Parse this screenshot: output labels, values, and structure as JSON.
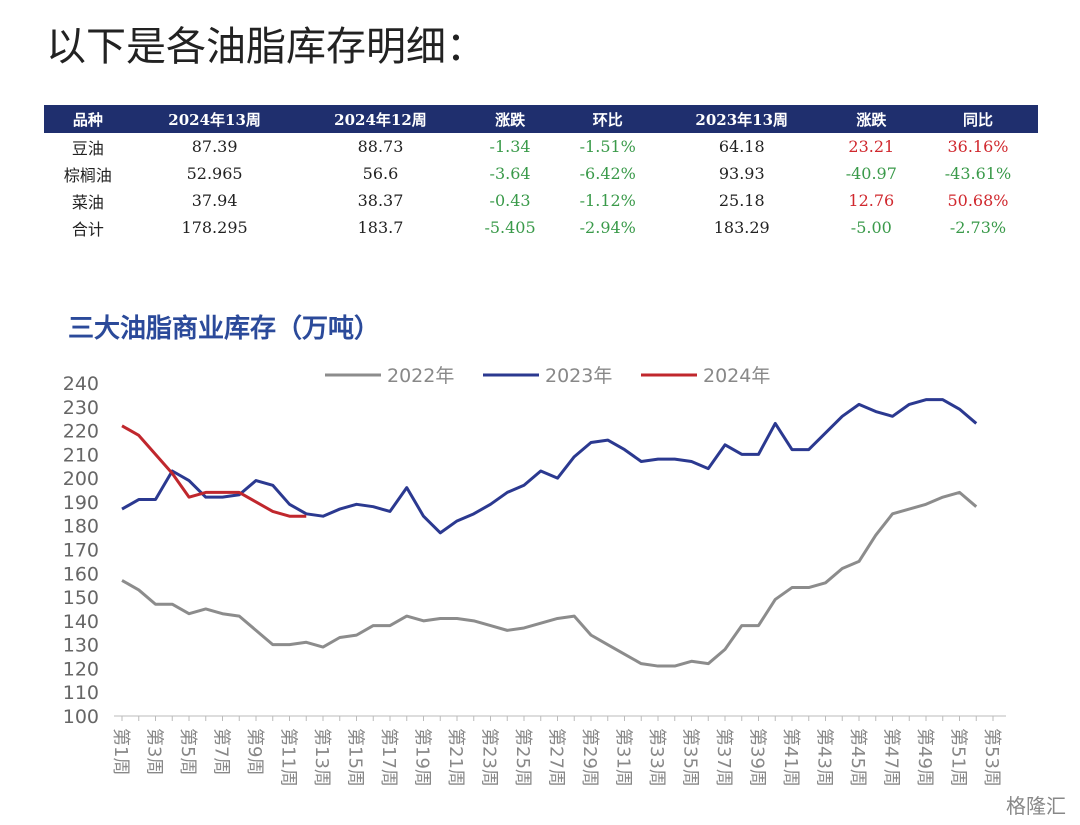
{
  "header": {
    "title": "以下是各油脂库存明细："
  },
  "table": {
    "columns": [
      "品种",
      "2024年13周",
      "2024年12周",
      "涨跌",
      "环比",
      "2023年13周",
      "涨跌",
      "同比"
    ],
    "rows": [
      [
        "豆油",
        "87.39",
        "88.73",
        "-1.34",
        "-1.51%",
        "64.18",
        "23.21",
        "36.16%"
      ],
      [
        "棕榈油",
        "52.965",
        "56.6",
        "-3.64",
        "-6.42%",
        "93.93",
        "-40.97",
        "-43.61%"
      ],
      [
        "菜油",
        "37.94",
        "38.37",
        "-0.43",
        "-1.12%",
        "25.18",
        "12.76",
        "50.68%"
      ],
      [
        "合计",
        "178.295",
        "183.7",
        "-5.405",
        "-2.94%",
        "183.29",
        "-5.00",
        "-2.73%"
      ]
    ]
  },
  "chart_data": {
    "type": "line",
    "title": "三大油脂商业库存（万吨）",
    "categories": [
      "第1周",
      null,
      "第3周",
      null,
      "第5周",
      null,
      "第7周",
      null,
      "第9周",
      null,
      "第11周",
      null,
      "第13周",
      null,
      "第15周",
      null,
      "第17周",
      null,
      "第19周",
      null,
      "第21周",
      null,
      "第23周",
      null,
      "第25周",
      null,
      "第27周",
      null,
      "第29周",
      null,
      "第31周",
      null,
      "第33周",
      null,
      "第35周",
      null,
      "第37周",
      null,
      "第39周",
      null,
      "第41周",
      null,
      "第43周",
      null,
      "第45周",
      null,
      "第47周",
      null,
      "第49周",
      null,
      "第51周",
      null,
      "第53周"
    ],
    "series": [
      {
        "name": "2022年",
        "color": "#8c8c8c",
        "values": [
          157,
          153,
          147,
          147,
          143,
          145,
          143,
          142,
          136,
          130,
          130,
          131,
          129,
          133,
          134,
          138,
          138,
          142,
          140,
          141,
          141,
          140,
          138,
          136,
          137,
          139,
          141,
          142,
          134,
          130,
          126,
          122,
          121,
          121,
          123,
          122,
          128,
          138,
          138,
          149,
          154,
          154,
          156,
          162,
          165,
          176,
          185,
          187,
          189,
          192,
          194,
          188,
          null
        ]
      },
      {
        "name": "2023年",
        "color": "#2b3990",
        "values": [
          187,
          191,
          191,
          203,
          199,
          192,
          192,
          193,
          199,
          197,
          189,
          185,
          184,
          187,
          189,
          188,
          186,
          196,
          184,
          177,
          182,
          185,
          189,
          194,
          197,
          203,
          200,
          209,
          215,
          216,
          212,
          207,
          208,
          208,
          207,
          204,
          214,
          210,
          210,
          223,
          212,
          212,
          219,
          226,
          231,
          228,
          226,
          231,
          233,
          233,
          229,
          223,
          null
        ]
      },
      {
        "name": "2024年",
        "color": "#c0272d",
        "values": [
          222,
          218,
          210,
          202,
          192,
          194,
          194,
          194,
          190,
          186,
          184,
          184,
          null,
          null,
          null,
          null,
          null,
          null,
          null,
          null,
          null,
          null,
          null,
          null,
          null,
          null,
          null,
          null,
          null,
          null,
          null,
          null,
          null,
          null,
          null,
          null,
          null,
          null,
          null,
          null,
          null,
          null,
          null,
          null,
          null,
          null,
          null,
          null,
          null,
          null,
          null,
          null,
          null
        ]
      }
    ],
    "ylim": [
      100,
      240
    ],
    "yticks": [
      100,
      110,
      120,
      130,
      140,
      150,
      160,
      170,
      180,
      190,
      200,
      210,
      220,
      230,
      240
    ],
    "grid": false
  },
  "watermark": "格隆汇"
}
